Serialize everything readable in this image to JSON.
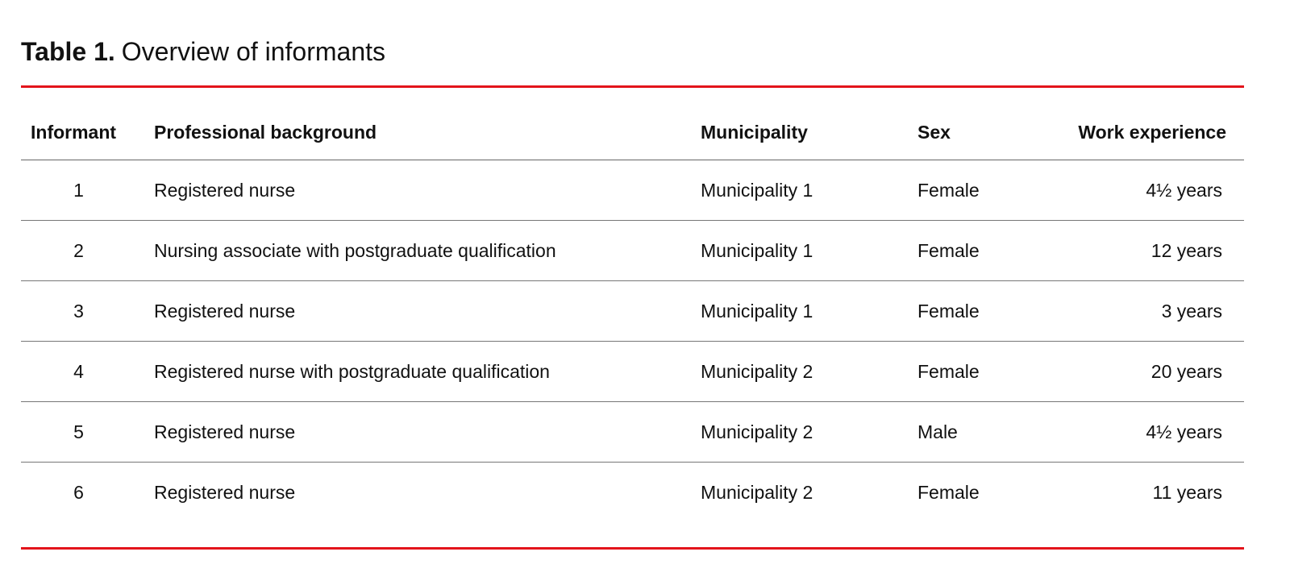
{
  "title": {
    "label": "Table 1.",
    "text": "Overview of informants"
  },
  "colors": {
    "rule_accent": "#e3141b"
  },
  "table": {
    "columns": [
      "Informant",
      "Professional background",
      "Municipality",
      "Sex",
      "Work experience"
    ],
    "rows": [
      [
        "1",
        "Registered nurse",
        "Municipality 1",
        "Female",
        "4½ years"
      ],
      [
        "2",
        "Nursing associate with postgraduate qualification",
        "Municipality 1",
        "Female",
        "12 years"
      ],
      [
        "3",
        "Registered nurse",
        "Municipality 1",
        "Female",
        "3 years"
      ],
      [
        "4",
        "Registered nurse with postgraduate qualification",
        "Municipality 2",
        "Female",
        "20 years"
      ],
      [
        "5",
        "Registered nurse",
        "Municipality 2",
        "Male",
        "4½ years"
      ],
      [
        "6",
        "Registered nurse",
        "Municipality 2",
        "Female",
        "11 years"
      ]
    ]
  }
}
